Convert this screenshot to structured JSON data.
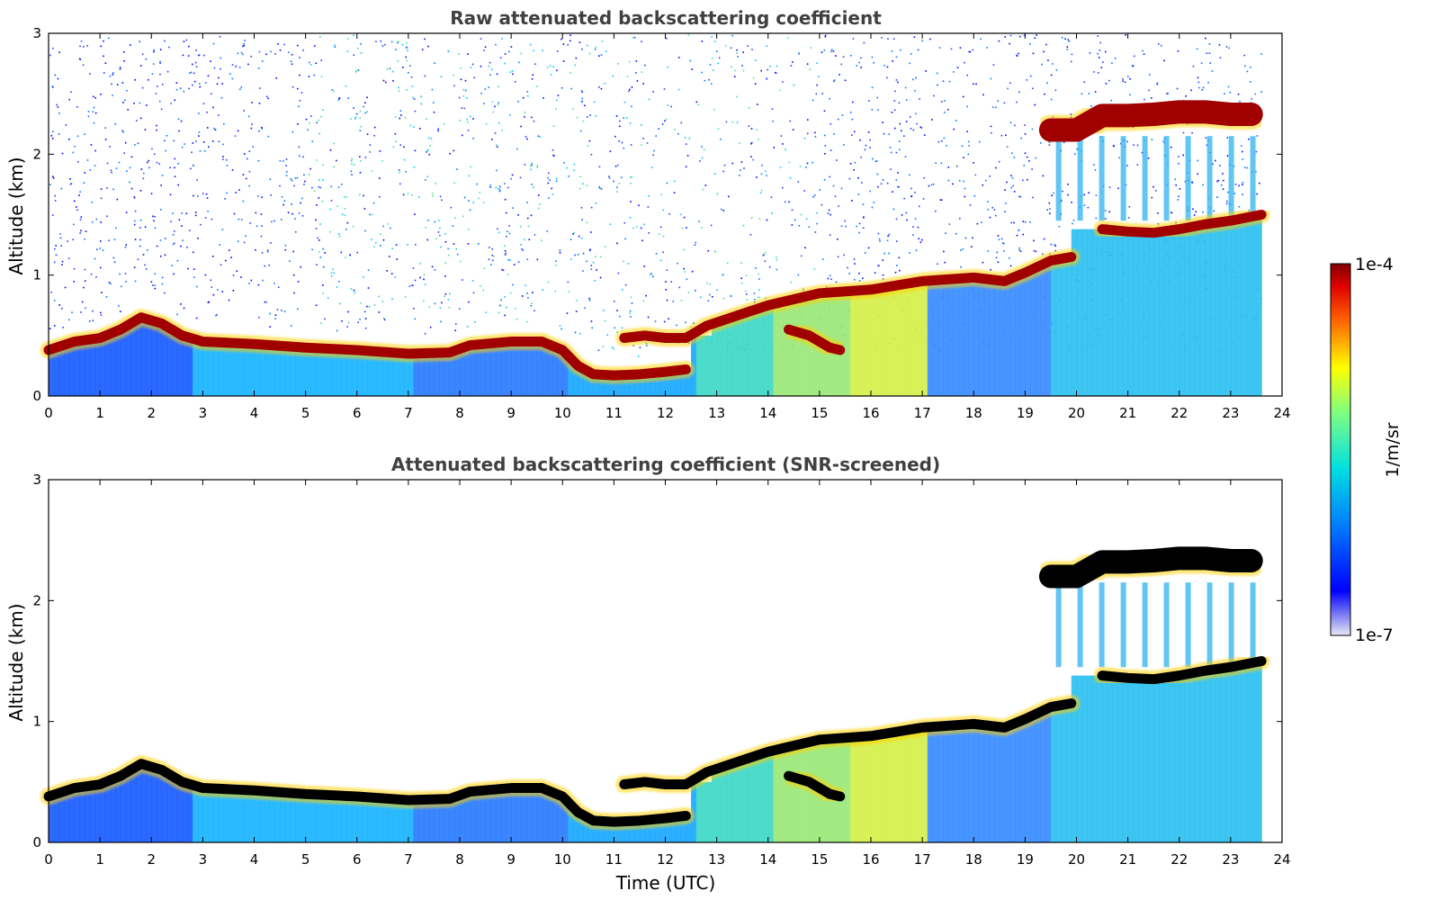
{
  "chart_data": [
    {
      "type": "heatmap",
      "title": "Raw attenuated backscattering coefficient",
      "xlabel": "",
      "ylabel": "Altitude (km)",
      "xlim": [
        0,
        24
      ],
      "ylim": [
        0,
        3
      ],
      "xticks": [
        0,
        1,
        2,
        3,
        4,
        5,
        6,
        7,
        8,
        9,
        10,
        11,
        12,
        13,
        14,
        15,
        16,
        17,
        18,
        19,
        20,
        21,
        22,
        23,
        24
      ],
      "yticks": [
        0,
        1,
        2,
        3
      ],
      "data_end_time": 23.6,
      "noise": true,
      "layers": [
        {
          "name": "boundary-layer-top",
          "points": [
            [
              0,
              0.38
            ],
            [
              0.5,
              0.45
            ],
            [
              1,
              0.48
            ],
            [
              1.4,
              0.55
            ],
            [
              1.8,
              0.65
            ],
            [
              2.2,
              0.6
            ],
            [
              2.6,
              0.5
            ],
            [
              3,
              0.45
            ],
            [
              4,
              0.43
            ],
            [
              5,
              0.4
            ],
            [
              6,
              0.38
            ],
            [
              7,
              0.35
            ],
            [
              7.8,
              0.36
            ],
            [
              8.2,
              0.42
            ],
            [
              9,
              0.45
            ],
            [
              9.6,
              0.45
            ],
            [
              10,
              0.38
            ],
            [
              10.3,
              0.25
            ],
            [
              10.6,
              0.18
            ],
            [
              11,
              0.17
            ],
            [
              11.5,
              0.18
            ],
            [
              12,
              0.2
            ],
            [
              12.4,
              0.22
            ]
          ]
        },
        {
          "name": "elevated-layer-1",
          "points": [
            [
              11.2,
              0.48
            ],
            [
              11.6,
              0.5
            ],
            [
              12,
              0.48
            ],
            [
              12.4,
              0.48
            ],
            [
              12.8,
              0.58
            ],
            [
              13.5,
              0.68
            ],
            [
              14,
              0.75
            ],
            [
              14.5,
              0.8
            ],
            [
              15,
              0.85
            ],
            [
              16,
              0.88
            ],
            [
              17,
              0.95
            ],
            [
              18,
              0.98
            ],
            [
              18.6,
              0.95
            ],
            [
              19,
              1.02
            ],
            [
              19.5,
              1.12
            ],
            [
              19.9,
              1.15
            ]
          ]
        },
        {
          "name": "residual-layer",
          "points": [
            [
              14.4,
              0.55
            ],
            [
              14.8,
              0.5
            ],
            [
              15.2,
              0.4
            ],
            [
              15.4,
              0.38
            ]
          ]
        },
        {
          "name": "upper-cloud-layer",
          "points": [
            [
              19.5,
              2.2
            ],
            [
              20,
              2.2
            ],
            [
              20.5,
              2.32
            ],
            [
              21,
              2.32
            ],
            [
              21.5,
              2.33
            ],
            [
              22,
              2.35
            ],
            [
              22.5,
              2.35
            ],
            [
              23,
              2.33
            ],
            [
              23.4,
              2.33
            ]
          ]
        },
        {
          "name": "mid-layer",
          "points": [
            [
              20.5,
              1.38
            ],
            [
              21,
              1.36
            ],
            [
              21.5,
              1.35
            ],
            [
              22,
              1.38
            ],
            [
              22.5,
              1.42
            ],
            [
              23,
              1.45
            ],
            [
              23.6,
              1.5
            ]
          ]
        }
      ],
      "colorbar": {
        "min_label": "1e-7",
        "max_label": "1e-4",
        "label": "1/m/sr",
        "colormap": "jet"
      }
    },
    {
      "type": "heatmap",
      "title": "Attenuated backscattering coefficient (SNR-screened)",
      "xlabel": "Time (UTC)",
      "ylabel": "Altitude (km)",
      "xlim": [
        0,
        24
      ],
      "ylim": [
        0,
        3
      ],
      "xticks": [
        0,
        1,
        2,
        3,
        4,
        5,
        6,
        7,
        8,
        9,
        10,
        11,
        12,
        13,
        14,
        15,
        16,
        17,
        18,
        19,
        20,
        21,
        22,
        23,
        24
      ],
      "yticks": [
        0,
        1,
        2,
        3
      ],
      "data_end_time": 23.6,
      "noise": false,
      "saturated_color": "#000000"
    }
  ]
}
